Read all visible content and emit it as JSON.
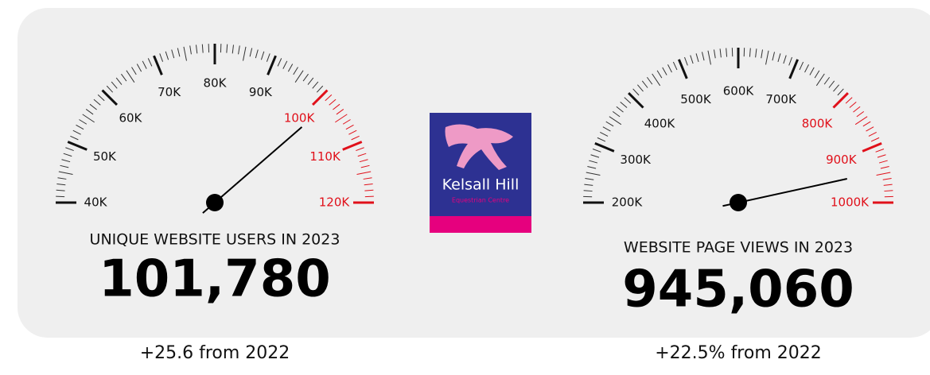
{
  "chart_data": [
    {
      "type": "gauge",
      "title": "UNIQUE WEBSITE USERS IN 2023",
      "value": 101780,
      "value_label": "101,780",
      "xlim": [
        40000,
        120000
      ],
      "xticks": [
        {
          "value": 40000,
          "label": "40K"
        },
        {
          "value": 50000,
          "label": "50K"
        },
        {
          "value": 60000,
          "label": "60K"
        },
        {
          "value": 70000,
          "label": "70K"
        },
        {
          "value": 80000,
          "label": "80K"
        },
        {
          "value": 90000,
          "label": "90K"
        },
        {
          "value": 100000,
          "label": "100K"
        },
        {
          "value": 110000,
          "label": "110K"
        },
        {
          "value": 120000,
          "label": "120K"
        }
      ],
      "red_from": 100000,
      "color": "#111111",
      "red_color": "#e0101a",
      "note": "+25.6 from 2022"
    },
    {
      "type": "gauge",
      "title": "WEBSITE PAGE VIEWS IN 2023",
      "value": 945060,
      "value_label": "945,060",
      "xlim": [
        200000,
        1000000
      ],
      "xticks": [
        {
          "value": 200000,
          "label": "200K"
        },
        {
          "value": 300000,
          "label": "300K"
        },
        {
          "value": 400000,
          "label": "400K"
        },
        {
          "value": 500000,
          "label": "500K"
        },
        {
          "value": 600000,
          "label": "600K"
        },
        {
          "value": 700000,
          "label": "700K"
        },
        {
          "value": 800000,
          "label": "800K"
        },
        {
          "value": 900000,
          "label": "900K"
        },
        {
          "value": 1000000,
          "label": "1000K"
        }
      ],
      "red_from": 800000,
      "color": "#111111",
      "red_color": "#e0101a",
      "note": "+22.5% from 2022"
    }
  ],
  "logo": {
    "text": "Kelsall Hill",
    "subtext": "Equestrian Centre"
  }
}
